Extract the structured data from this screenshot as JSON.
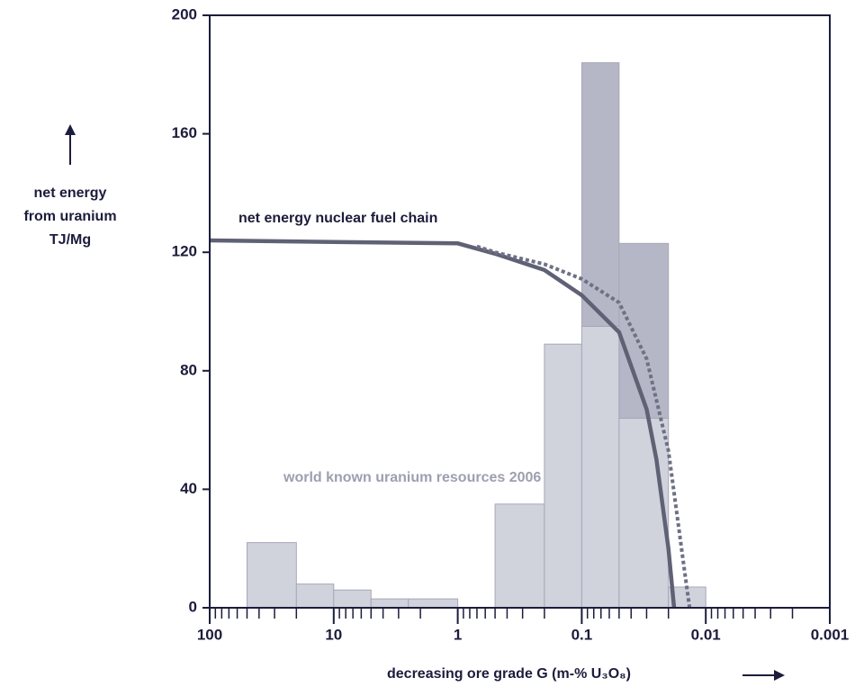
{
  "chart_data": {
    "type": "histogram",
    "ylabel": [
      "net energy",
      "from uranium",
      "TJ/Mg"
    ],
    "xlabel": "decreasing ore grade G (m-% U₃O₈)",
    "annotations": [
      "net energy nuclear fuel chain",
      "world known uranium resources 2006"
    ],
    "xscale": "log",
    "xlim": [
      100,
      0.001
    ],
    "xticks": [
      100,
      10,
      1,
      0.1,
      0.01,
      0.001
    ],
    "ylim": [
      0,
      200
    ],
    "yticks": [
      0,
      40,
      80,
      120,
      160,
      200
    ],
    "bins": [
      50,
      20,
      10,
      5,
      2.5,
      1,
      0.5,
      0.2,
      0.1,
      0.05,
      0.02,
      0.01
    ],
    "series": [
      {
        "color": "#d0d2dc",
        "values": [
          22,
          8,
          6,
          3,
          3,
          0,
          35,
          89,
          95,
          64,
          7
        ]
      },
      {
        "color": "#b5b7c6",
        "values": [
          0,
          0,
          0,
          0,
          0,
          0,
          0,
          0,
          89,
          59,
          0
        ]
      }
    ],
    "lines": [
      {
        "color": "#5f6175",
        "style": "solid",
        "x": [
          100,
          10,
          1,
          0.5,
          0.2,
          0.1,
          0.05,
          0.03,
          0.025,
          0.02,
          0.018
        ],
        "y": [
          124,
          123.5,
          123,
          119.5,
          114,
          105.5,
          93,
          67,
          50,
          20,
          0
        ]
      },
      {
        "color": "#6e7084",
        "style": "dotted",
        "x": [
          0.7,
          0.5,
          0.2,
          0.1,
          0.05,
          0.03,
          0.02,
          0.015,
          0.0135
        ],
        "y": [
          122,
          120,
          116,
          111,
          103,
          84,
          53,
          14,
          0
        ]
      }
    ]
  }
}
